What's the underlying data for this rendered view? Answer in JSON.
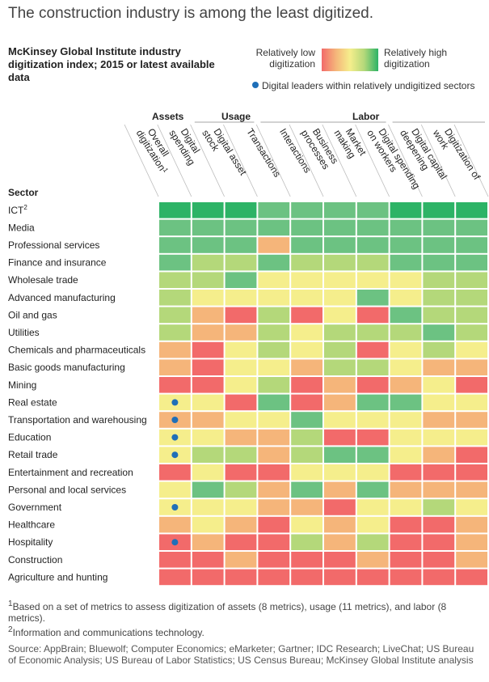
{
  "title": "The construction industry is among the least digitized.",
  "subtitle": "McKinsey Global Institute industry digitization index; 2015 or latest available data",
  "legend": {
    "low_label": "Relatively low digitization",
    "high_label": "Relatively high digitization",
    "dot_label": "Digital leaders within relatively undigitized sectors",
    "dot_color": "#1f6fb8"
  },
  "footnotes": {
    "fn1_marker": "1",
    "fn1": "Based on a set of metrics to assess digitization of assets (8 metrics), usage (11 metrics), and labor (8 metrics).",
    "fn2_marker": "2",
    "fn2": "Information and communications technology.",
    "source": "Source: AppBrain; Bluewolf; Computer Economics; eMarketer; Gartner; IDC Research; LiveChat; US Bureau of Economic Analysis; US Bureau of Labor Statistics; US Census Bureau; McKinsey Global Institute analysis"
  },
  "chart_data": {
    "type": "heatmap",
    "title": "The construction industry is among the least digitized.",
    "row_header": "Sector",
    "color_scale": {
      "1": "#f26a6a",
      "2": "#f5b57a",
      "3": "#f5ee8c",
      "4": "#b4d87a",
      "5": "#6cc282",
      "6": "#2db366"
    },
    "scale_note": "1 = relatively low digitization, 6 = relatively high digitization",
    "groups": [
      {
        "name": "Assets",
        "columns": [
          "Digital spending",
          "Digital asset stock"
        ]
      },
      {
        "name": "Usage",
        "columns": [
          "Transactions",
          "Interactions",
          "Business processes",
          "Market making"
        ]
      },
      {
        "name": "Labor",
        "columns": [
          "Digital spending on workers",
          "Digital capital deepening",
          "Digitization of work"
        ]
      }
    ],
    "columns": [
      {
        "label": "Overall digitization",
        "marker": "1"
      },
      {
        "label": "Digital spending",
        "marker": ""
      },
      {
        "label": "Digital asset stock",
        "marker": ""
      },
      {
        "label": "Transactions",
        "marker": ""
      },
      {
        "label": "Interactions",
        "marker": ""
      },
      {
        "label": "Business processes",
        "marker": ""
      },
      {
        "label": "Market making",
        "marker": ""
      },
      {
        "label": "Digital spending on workers",
        "marker": ""
      },
      {
        "label": "Digital capital deepening",
        "marker": ""
      },
      {
        "label": "Digitization of work",
        "marker": ""
      }
    ],
    "rows": [
      {
        "sector": "ICT",
        "marker": "2",
        "leader": false,
        "values": [
          6,
          6,
          6,
          5,
          5,
          5,
          5,
          6,
          6,
          6
        ]
      },
      {
        "sector": "Media",
        "marker": "",
        "leader": false,
        "values": [
          5,
          5,
          5,
          5,
          5,
          5,
          5,
          5,
          5,
          5
        ]
      },
      {
        "sector": "Professional services",
        "marker": "",
        "leader": false,
        "values": [
          5,
          5,
          5,
          2,
          5,
          5,
          5,
          5,
          5,
          5
        ]
      },
      {
        "sector": "Finance and insurance",
        "marker": "",
        "leader": false,
        "values": [
          5,
          4,
          4,
          5,
          4,
          4,
          4,
          5,
          5,
          5
        ]
      },
      {
        "sector": "Wholesale trade",
        "marker": "",
        "leader": false,
        "values": [
          4,
          4,
          5,
          3,
          3,
          3,
          3,
          3,
          4,
          4
        ]
      },
      {
        "sector": "Advanced manufacturing",
        "marker": "",
        "leader": false,
        "values": [
          4,
          3,
          3,
          3,
          3,
          3,
          5,
          3,
          4,
          4
        ]
      },
      {
        "sector": "Oil and gas",
        "marker": "",
        "leader": false,
        "values": [
          4,
          2,
          1,
          4,
          1,
          3,
          1,
          5,
          4,
          4
        ]
      },
      {
        "sector": "Utilities",
        "marker": "",
        "leader": false,
        "values": [
          4,
          2,
          2,
          4,
          3,
          4,
          4,
          4,
          5,
          4
        ]
      },
      {
        "sector": "Chemicals and pharmaceuticals",
        "marker": "",
        "leader": false,
        "values": [
          2,
          1,
          3,
          4,
          3,
          4,
          1,
          3,
          4,
          3
        ]
      },
      {
        "sector": "Basic goods manufacturing",
        "marker": "",
        "leader": false,
        "values": [
          2,
          1,
          3,
          3,
          2,
          4,
          4,
          3,
          2,
          2
        ]
      },
      {
        "sector": "Mining",
        "marker": "",
        "leader": false,
        "values": [
          1,
          1,
          3,
          4,
          1,
          2,
          1,
          2,
          3,
          1
        ]
      },
      {
        "sector": "Real estate",
        "marker": "",
        "leader": true,
        "values": [
          3,
          3,
          1,
          5,
          1,
          2,
          5,
          5,
          3,
          3
        ]
      },
      {
        "sector": "Transportation and warehousing",
        "marker": "",
        "leader": true,
        "values": [
          2,
          2,
          3,
          3,
          5,
          3,
          3,
          3,
          2,
          2
        ]
      },
      {
        "sector": "Education",
        "marker": "",
        "leader": true,
        "values": [
          3,
          3,
          2,
          2,
          4,
          1,
          1,
          3,
          3,
          3
        ]
      },
      {
        "sector": "Retail trade",
        "marker": "",
        "leader": true,
        "values": [
          3,
          4,
          4,
          2,
          4,
          5,
          5,
          3,
          2,
          1
        ]
      },
      {
        "sector": "Entertainment and recreation",
        "marker": "",
        "leader": false,
        "values": [
          1,
          3,
          1,
          1,
          3,
          3,
          3,
          1,
          1,
          1
        ]
      },
      {
        "sector": "Personal and local services",
        "marker": "",
        "leader": false,
        "values": [
          3,
          5,
          4,
          2,
          5,
          2,
          5,
          2,
          2,
          2
        ]
      },
      {
        "sector": "Government",
        "marker": "",
        "leader": true,
        "values": [
          3,
          3,
          3,
          2,
          2,
          1,
          3,
          3,
          4,
          3
        ]
      },
      {
        "sector": "Healthcare",
        "marker": "",
        "leader": false,
        "values": [
          2,
          3,
          2,
          1,
          3,
          2,
          3,
          1,
          1,
          2
        ]
      },
      {
        "sector": "Hospitality",
        "marker": "",
        "leader": true,
        "values": [
          1,
          2,
          1,
          1,
          4,
          2,
          4,
          1,
          1,
          2
        ]
      },
      {
        "sector": "Construction",
        "marker": "",
        "leader": false,
        "values": [
          1,
          1,
          2,
          1,
          1,
          1,
          2,
          1,
          1,
          2
        ]
      },
      {
        "sector": "Agriculture and hunting",
        "marker": "",
        "leader": false,
        "values": [
          1,
          1,
          1,
          1,
          1,
          1,
          1,
          1,
          1,
          1
        ]
      }
    ]
  }
}
